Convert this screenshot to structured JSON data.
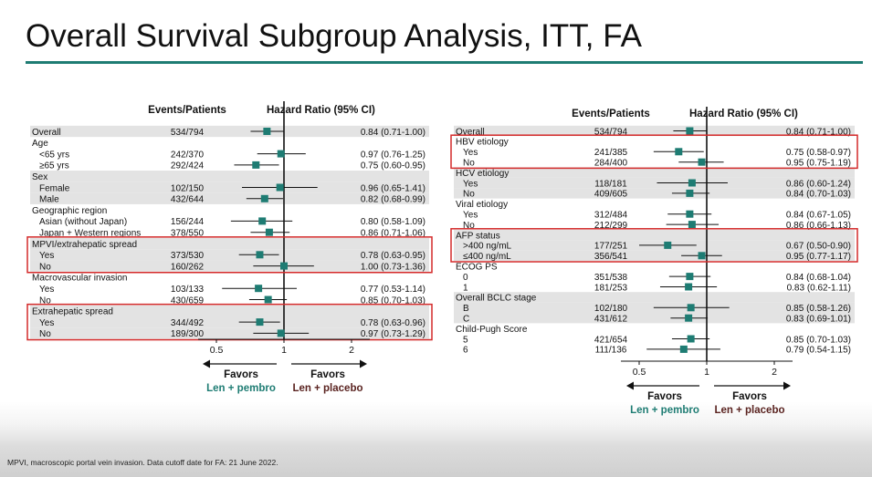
{
  "slide": {
    "title": "Overall Survival Subgroup Analysis, ITT, FA",
    "footnote": "MPVI, macroscopic portal vein invasion. Data cutoff date for FA: 21 June 2022."
  },
  "colors": {
    "accent": "#1e7c73",
    "marker": "#1e7c73",
    "highlight": "#d42a2a",
    "shade": "#e3e3e3",
    "placebo": "#5a2320"
  },
  "forest_left": {
    "headers": {
      "events": "Events/Patients",
      "hr": "Hazard  Ratio (95% CI)"
    },
    "rows": [
      {
        "label": "Overall",
        "events": "534/794",
        "ci_text": "0.84 (0.71-1.00)",
        "hr": 0.84,
        "lo": 0.71,
        "hi": 1.0,
        "indent": false,
        "shade": true
      },
      {
        "label": "Age",
        "events": "",
        "ci_text": "",
        "hr": null,
        "lo": null,
        "hi": null,
        "indent": false,
        "shade": false
      },
      {
        "label": "<65 yrs",
        "events": "242/370",
        "ci_text": "0.97 (0.76-1.25)",
        "hr": 0.97,
        "lo": 0.76,
        "hi": 1.25,
        "indent": true,
        "shade": false
      },
      {
        "label": "≥65 yrs",
        "events": "292/424",
        "ci_text": "0.75 (0.60-0.95)",
        "hr": 0.75,
        "lo": 0.6,
        "hi": 0.95,
        "indent": true,
        "shade": false
      },
      {
        "label": "Sex",
        "events": "",
        "ci_text": "",
        "hr": null,
        "lo": null,
        "hi": null,
        "indent": false,
        "shade": true
      },
      {
        "label": "Female",
        "events": "102/150",
        "ci_text": "0.96 (0.65-1.41)",
        "hr": 0.96,
        "lo": 0.65,
        "hi": 1.41,
        "indent": true,
        "shade": true
      },
      {
        "label": "Male",
        "events": "432/644",
        "ci_text": "0.82 (0.68-0.99)",
        "hr": 0.82,
        "lo": 0.68,
        "hi": 0.99,
        "indent": true,
        "shade": true
      },
      {
        "label": "Geographic region",
        "events": "",
        "ci_text": "",
        "hr": null,
        "lo": null,
        "hi": null,
        "indent": false,
        "shade": false
      },
      {
        "label": "Asian (without Japan)",
        "events": "156/244",
        "ci_text": "0.80 (0.58-1.09)",
        "hr": 0.8,
        "lo": 0.58,
        "hi": 1.09,
        "indent": true,
        "shade": false
      },
      {
        "label": "Japan + Western regions",
        "events": "378/550",
        "ci_text": "0.86 (0.71-1.06)",
        "hr": 0.86,
        "lo": 0.71,
        "hi": 1.06,
        "indent": true,
        "shade": false
      },
      {
        "label": "MPVI/extrahepatic spread",
        "events": "",
        "ci_text": "",
        "hr": null,
        "lo": null,
        "hi": null,
        "indent": false,
        "shade": true
      },
      {
        "label": "Yes",
        "events": "373/530",
        "ci_text": "0.78 (0.63-0.95)",
        "hr": 0.78,
        "lo": 0.63,
        "hi": 0.95,
        "indent": true,
        "shade": true
      },
      {
        "label": "No",
        "events": "160/262",
        "ci_text": "1.00 (0.73-1.36)",
        "hr": 1.0,
        "lo": 0.73,
        "hi": 1.36,
        "indent": true,
        "shade": true
      },
      {
        "label": "Macrovascular invasion",
        "events": "",
        "ci_text": "",
        "hr": null,
        "lo": null,
        "hi": null,
        "indent": false,
        "shade": false
      },
      {
        "label": "Yes",
        "events": "103/133",
        "ci_text": "0.77 (0.53-1.14)",
        "hr": 0.77,
        "lo": 0.53,
        "hi": 1.14,
        "indent": true,
        "shade": false
      },
      {
        "label": "No",
        "events": "430/659",
        "ci_text": "0.85 (0.70-1.03)",
        "hr": 0.85,
        "lo": 0.7,
        "hi": 1.03,
        "indent": true,
        "shade": false
      },
      {
        "label": "Extrahepatic spread",
        "events": "",
        "ci_text": "",
        "hr": null,
        "lo": null,
        "hi": null,
        "indent": false,
        "shade": true
      },
      {
        "label": "Yes",
        "events": "344/492",
        "ci_text": "0.78 (0.63-0.96)",
        "hr": 0.78,
        "lo": 0.63,
        "hi": 0.96,
        "indent": true,
        "shade": true
      },
      {
        "label": "No",
        "events": "189/300",
        "ci_text": "0.97 (0.73-1.29)",
        "hr": 0.97,
        "lo": 0.73,
        "hi": 1.29,
        "indent": true,
        "shade": true
      }
    ],
    "highlight_groups": [
      [
        10,
        12
      ],
      [
        16,
        18
      ]
    ],
    "ticks": [
      {
        "value": 0.5,
        "label": "0.5"
      },
      {
        "value": 1,
        "label": "1"
      },
      {
        "value": 2,
        "label": "2"
      }
    ],
    "favors_left": {
      "word": "Favors",
      "arm": "Len + pembro"
    },
    "favors_right": {
      "word": "Favors",
      "arm": "Len + placebo"
    }
  },
  "forest_right": {
    "headers": {
      "events": "Events/Patients",
      "hr": "Hazard  Ratio (95% CI)"
    },
    "rows": [
      {
        "label": "Overall",
        "events": "534/794",
        "ci_text": "0.84 (0.71-1.00)",
        "hr": 0.84,
        "lo": 0.71,
        "hi": 1.0,
        "indent": false,
        "shade": true
      },
      {
        "label": "HBV etiology",
        "events": "",
        "ci_text": "",
        "hr": null,
        "lo": null,
        "hi": null,
        "indent": false,
        "shade": false
      },
      {
        "label": "Yes",
        "events": "241/385",
        "ci_text": "0.75 (0.58-0.97)",
        "hr": 0.75,
        "lo": 0.58,
        "hi": 0.97,
        "indent": true,
        "shade": false
      },
      {
        "label": "No",
        "events": "284/400",
        "ci_text": "0.95 (0.75-1.19)",
        "hr": 0.95,
        "lo": 0.75,
        "hi": 1.19,
        "indent": true,
        "shade": false
      },
      {
        "label": "HCV etiology",
        "events": "",
        "ci_text": "",
        "hr": null,
        "lo": null,
        "hi": null,
        "indent": false,
        "shade": true
      },
      {
        "label": "Yes",
        "events": "118/181",
        "ci_text": "0.86 (0.60-1.24)",
        "hr": 0.86,
        "lo": 0.6,
        "hi": 1.24,
        "indent": true,
        "shade": true
      },
      {
        "label": "No",
        "events": "409/605",
        "ci_text": "0.84 (0.70-1.03)",
        "hr": 0.84,
        "lo": 0.7,
        "hi": 1.03,
        "indent": true,
        "shade": true
      },
      {
        "label": "Viral etiology",
        "events": "",
        "ci_text": "",
        "hr": null,
        "lo": null,
        "hi": null,
        "indent": false,
        "shade": false
      },
      {
        "label": "Yes",
        "events": "312/484",
        "ci_text": "0.84 (0.67-1.05)",
        "hr": 0.84,
        "lo": 0.67,
        "hi": 1.05,
        "indent": true,
        "shade": false
      },
      {
        "label": "No",
        "events": "212/299",
        "ci_text": "0.86 (0.66-1.13)",
        "hr": 0.86,
        "lo": 0.66,
        "hi": 1.13,
        "indent": true,
        "shade": false
      },
      {
        "label": "AFP status",
        "events": "",
        "ci_text": "",
        "hr": null,
        "lo": null,
        "hi": null,
        "indent": false,
        "shade": true
      },
      {
        "label": ">400 ng/mL",
        "events": "177/251",
        "ci_text": "0.67 (0.50-0.90)",
        "hr": 0.67,
        "lo": 0.5,
        "hi": 0.9,
        "indent": true,
        "shade": true
      },
      {
        "label": "≤400 ng/mL",
        "events": "356/541",
        "ci_text": "0.95 (0.77-1.17)",
        "hr": 0.95,
        "lo": 0.77,
        "hi": 1.17,
        "indent": true,
        "shade": true
      },
      {
        "label": "ECOG PS",
        "events": "",
        "ci_text": "",
        "hr": null,
        "lo": null,
        "hi": null,
        "indent": false,
        "shade": false
      },
      {
        "label": "0",
        "events": "351/538",
        "ci_text": "0.84 (0.68-1.04)",
        "hr": 0.84,
        "lo": 0.68,
        "hi": 1.04,
        "indent": true,
        "shade": false
      },
      {
        "label": "1",
        "events": "181/253",
        "ci_text": "0.83 (0.62-1.11)",
        "hr": 0.83,
        "lo": 0.62,
        "hi": 1.11,
        "indent": true,
        "shade": false
      },
      {
        "label": "Overall BCLC stage",
        "events": "",
        "ci_text": "",
        "hr": null,
        "lo": null,
        "hi": null,
        "indent": false,
        "shade": true
      },
      {
        "label": "B",
        "events": "102/180",
        "ci_text": "0.85 (0.58-1.26)",
        "hr": 0.85,
        "lo": 0.58,
        "hi": 1.26,
        "indent": true,
        "shade": true
      },
      {
        "label": "C",
        "events": "431/612",
        "ci_text": "0.83 (0.69-1.01)",
        "hr": 0.83,
        "lo": 0.69,
        "hi": 1.01,
        "indent": true,
        "shade": true
      },
      {
        "label": "Child-Pugh Score",
        "events": "",
        "ci_text": "",
        "hr": null,
        "lo": null,
        "hi": null,
        "indent": false,
        "shade": false
      },
      {
        "label": "5",
        "events": "421/654",
        "ci_text": "0.85 (0.70-1.03)",
        "hr": 0.85,
        "lo": 0.7,
        "hi": 1.03,
        "indent": true,
        "shade": false
      },
      {
        "label": "6",
        "events": "111/136",
        "ci_text": "0.79 (0.54-1.15)",
        "hr": 0.79,
        "lo": 0.54,
        "hi": 1.15,
        "indent": true,
        "shade": false
      }
    ],
    "highlight_groups": [
      [
        1,
        3
      ],
      [
        10,
        12
      ]
    ],
    "ticks": [
      {
        "value": 0.5,
        "label": "0.5"
      },
      {
        "value": 1,
        "label": "1"
      },
      {
        "value": 2,
        "label": "2"
      }
    ],
    "favors_left": {
      "word": "Favors",
      "arm": "Len + pembro"
    },
    "favors_right": {
      "word": "Favors",
      "arm": "Len + placebo"
    }
  },
  "chart_data": [
    {
      "type": "forest",
      "xscale": "log",
      "xlim": [
        0.4,
        2.3
      ],
      "reference": 1,
      "xticks": [
        0.5,
        1,
        2
      ],
      "columns": [
        "Events/Patients",
        "Hazard  Ratio (95% CI)"
      ],
      "categories": [
        "Overall",
        "<65 yrs",
        "≥65 yrs",
        "Female",
        "Male",
        "Asian (without Japan)",
        "Japan + Western regions",
        "MPVI/extrahepatic spread: Yes",
        "MPVI/extrahepatic spread: No",
        "Macrovascular invasion: Yes",
        "Macrovascular invasion: No",
        "Extrahepatic spread: Yes",
        "Extrahepatic spread: No"
      ],
      "hr": [
        0.84,
        0.97,
        0.75,
        0.96,
        0.82,
        0.8,
        0.86,
        0.78,
        1.0,
        0.77,
        0.85,
        0.78,
        0.97
      ],
      "lower": [
        0.71,
        0.76,
        0.6,
        0.65,
        0.68,
        0.58,
        0.71,
        0.63,
        0.73,
        0.53,
        0.7,
        0.63,
        0.73
      ],
      "upper": [
        1.0,
        1.25,
        0.95,
        1.41,
        0.99,
        1.09,
        1.06,
        0.95,
        1.36,
        1.14,
        1.03,
        0.96,
        1.29
      ]
    },
    {
      "type": "forest",
      "xscale": "log",
      "xlim": [
        0.4,
        2.3
      ],
      "reference": 1,
      "xticks": [
        0.5,
        1,
        2
      ],
      "columns": [
        "Events/Patients",
        "Hazard  Ratio (95% CI)"
      ],
      "categories": [
        "Overall",
        "HBV etiology: Yes",
        "HBV etiology: No",
        "HCV etiology: Yes",
        "HCV etiology: No",
        "Viral etiology: Yes",
        "Viral etiology: No",
        ">400 ng/mL",
        "≤400 ng/mL",
        "ECOG PS 0",
        "ECOG PS 1",
        "BCLC B",
        "BCLC C",
        "Child-Pugh 5",
        "Child-Pugh 6"
      ],
      "hr": [
        0.84,
        0.75,
        0.95,
        0.86,
        0.84,
        0.84,
        0.86,
        0.67,
        0.95,
        0.84,
        0.83,
        0.85,
        0.83,
        0.85,
        0.79
      ],
      "lower": [
        0.71,
        0.58,
        0.75,
        0.6,
        0.7,
        0.67,
        0.66,
        0.5,
        0.77,
        0.68,
        0.62,
        0.58,
        0.69,
        0.7,
        0.54
      ],
      "upper": [
        1.0,
        0.97,
        1.19,
        1.24,
        1.03,
        1.05,
        1.13,
        0.9,
        1.17,
        1.04,
        1.11,
        1.26,
        1.01,
        1.03,
        1.15
      ]
    }
  ]
}
